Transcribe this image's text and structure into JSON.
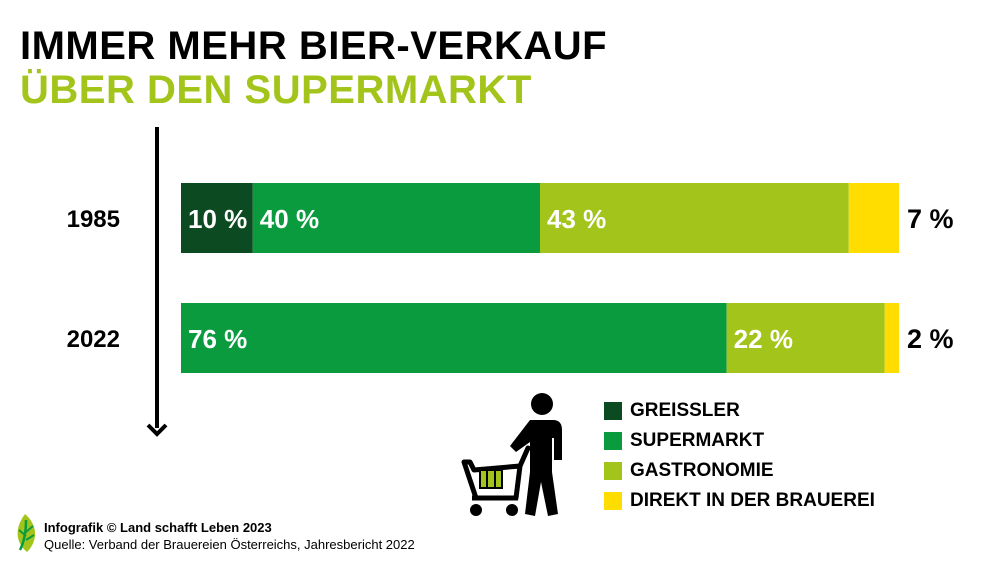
{
  "title_line1": "IMMER MEHR BIER-VERKAUF",
  "title_line2": "ÜBER DEN SUPERMARKT",
  "title_line2_color": "#a3c41b",
  "chart_data": {
    "type": "bar",
    "orientation": "horizontal",
    "stacked": true,
    "categories": [
      "1985",
      "2022"
    ],
    "series": [
      {
        "name": "GREISSLER",
        "color": "#0c4a22",
        "values": [
          10,
          0
        ],
        "labels": [
          "10 %",
          ""
        ]
      },
      {
        "name": "SUPERMARKT",
        "color": "#0b9b3f",
        "values": [
          40,
          76
        ],
        "labels": [
          "40 %",
          "76 %"
        ]
      },
      {
        "name": "GASTRONOMIE",
        "color": "#a3c41b",
        "values": [
          43,
          22
        ],
        "labels": [
          "43 %",
          "22 %"
        ]
      },
      {
        "name": "DIREKT IN DER BRAUEREI",
        "color": "#ffdd00",
        "values": [
          7,
          2
        ],
        "labels": [
          "7 %",
          "2 %"
        ]
      }
    ],
    "xlim": [
      0,
      100
    ],
    "grid": false,
    "legend_position": "bottom-right"
  },
  "footer": {
    "credit": "Infografik © Land schafft Leben 2023",
    "source": "Quelle: Verband der Brauereien Österreichs, Jahresbericht 2022"
  },
  "icons": {
    "timeline": "down-arrow-icon",
    "illustration": "shopping-cart-person-icon",
    "logo": "leaf-logo-icon"
  }
}
